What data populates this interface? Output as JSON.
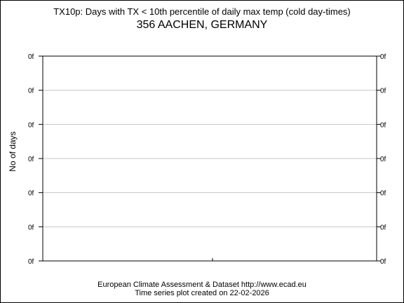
{
  "chart_data": {
    "type": "line",
    "title": "TX10p: Days with TX < 10th percentile of daily max temp (cold day-times)",
    "subtitle": "356 AACHEN, GERMANY",
    "xlabel": "",
    "ylabel": "No of days",
    "series": [],
    "y_tick_labels": [
      "0f",
      "0f",
      "0f",
      "0f",
      "0f",
      "0f",
      "0f"
    ],
    "y_tick_labels_right": [
      "0f",
      "0f",
      "0f",
      "0f",
      "0f",
      "0f",
      "0f"
    ],
    "grid": true,
    "grid_color": "#c8c8c8",
    "legend": "none"
  },
  "footer": {
    "line1": "European Climate Assessment & Dataset  http://www.ecad.eu",
    "line2": "Time series plot created on 22-02-2026"
  }
}
